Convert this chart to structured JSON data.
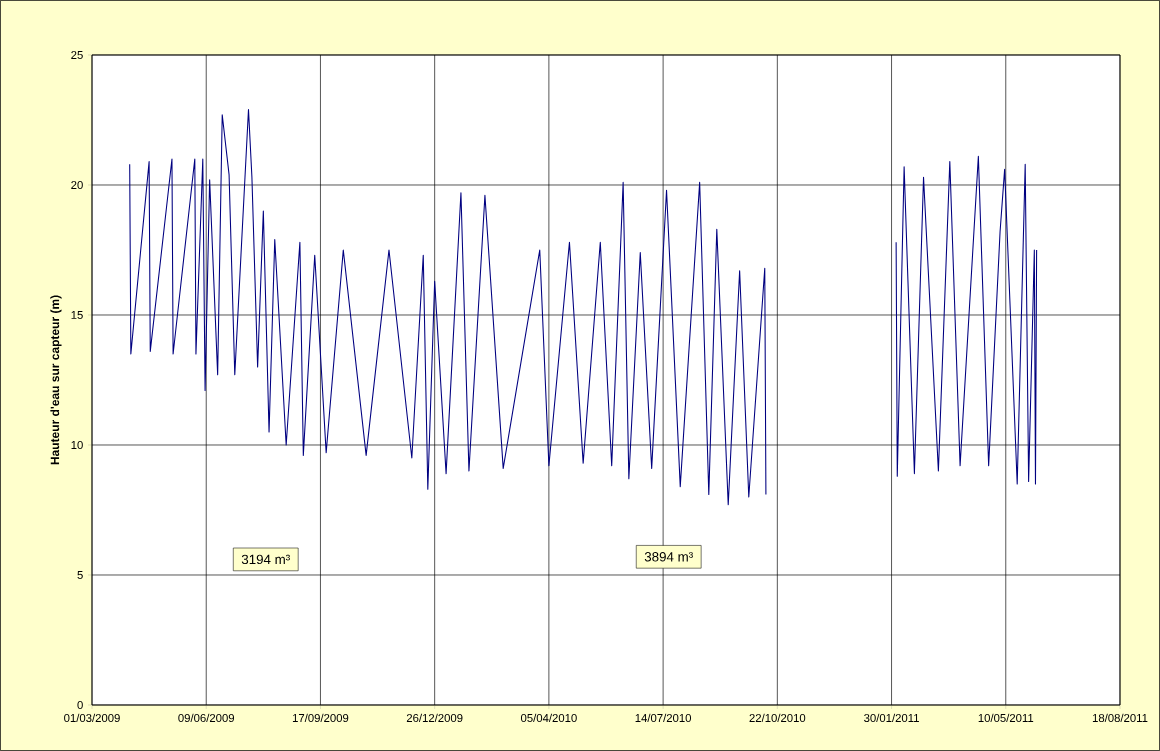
{
  "chart_data": {
    "type": "line",
    "ylabel": "Hauteur d'eau sur capteur (m)",
    "xlim": [
      "2009-03-01",
      "2011-08-18"
    ],
    "xticks": [
      {
        "value": "2009-03-01",
        "label": "01/03/2009"
      },
      {
        "value": "2009-06-09",
        "label": "09/06/2009"
      },
      {
        "value": "2009-09-17",
        "label": "17/09/2009"
      },
      {
        "value": "2009-12-26",
        "label": "26/12/2009"
      },
      {
        "value": "2010-04-05",
        "label": "05/04/2010"
      },
      {
        "value": "2010-07-14",
        "label": "14/07/2010"
      },
      {
        "value": "2010-10-22",
        "label": "22/10/2010"
      },
      {
        "value": "2011-01-30",
        "label": "30/01/2011"
      },
      {
        "value": "2011-05-10",
        "label": "10/05/2011"
      },
      {
        "value": "2011-08-18",
        "label": "18/08/2011"
      }
    ],
    "ylim": [
      0,
      25
    ],
    "yticks": [
      0,
      5,
      10,
      15,
      20,
      25
    ],
    "grid": true,
    "marker": "none",
    "line_style": "solid",
    "annotations": [
      "3194 m³",
      "3894 m³"
    ],
    "series": [
      {
        "color": "#000080",
        "x": [
          "2009-04-03",
          "2009-04-04",
          "2009-04-20",
          "2009-04-21",
          "2009-05-10",
          "2009-05-11",
          "2009-05-30",
          "2009-05-31",
          "2009-06-06",
          "2009-06-08",
          "2009-06-12",
          "2009-06-19",
          "2009-06-23",
          "2009-06-29",
          "2009-07-04",
          "2009-07-16",
          "2009-07-19",
          "2009-07-24",
          "2009-07-29",
          "2009-08-03",
          "2009-08-08",
          "2009-08-18",
          "2009-08-30",
          "2009-09-02",
          "2009-09-12",
          "2009-09-22",
          "2009-10-07",
          "2009-10-27",
          "2009-11-16",
          "2009-12-06",
          "2009-12-16",
          "2009-12-20",
          "2009-12-26",
          "2010-01-05",
          "2010-01-18",
          "2010-01-25",
          "2010-02-08",
          "2010-02-24",
          "2010-03-28",
          "2010-04-05",
          "2010-04-23",
          "2010-05-05",
          "2010-05-20",
          "2010-05-30",
          "2010-06-09",
          "2010-06-14",
          "2010-06-24",
          "2010-07-04",
          "2010-07-17",
          "2010-07-29",
          "2010-08-15",
          "2010-08-23",
          "2010-08-30",
          "2010-09-09",
          "2010-09-19",
          "2010-09-27",
          "2010-10-11",
          "2010-10-12",
          "2010-12-01",
          "2011-02-03",
          "2011-02-04",
          "2011-02-10",
          "2011-02-19",
          "2011-02-27",
          "2011-03-12",
          "2011-03-22",
          "2011-03-31",
          "2011-04-16",
          "2011-04-25",
          "2011-05-05",
          "2011-05-09",
          "2011-05-20",
          "2011-05-27",
          "2011-05-30",
          "2011-06-04",
          "2011-06-05",
          "2011-06-06"
        ],
        "values": [
          20.8,
          13.5,
          20.9,
          13.6,
          21.0,
          13.5,
          21.0,
          13.5,
          21.0,
          12.1,
          20.2,
          12.7,
          22.7,
          20.4,
          12.7,
          22.9,
          20.3,
          13.0,
          19.0,
          10.5,
          17.9,
          10.0,
          17.8,
          9.6,
          17.3,
          9.7,
          17.5,
          9.6,
          17.5,
          9.5,
          17.3,
          8.3,
          16.3,
          8.9,
          19.7,
          9.0,
          19.6,
          9.1,
          17.5,
          9.2,
          17.8,
          9.3,
          17.8,
          9.2,
          20.1,
          8.7,
          17.4,
          9.1,
          19.8,
          8.4,
          20.1,
          8.1,
          18.3,
          7.7,
          16.7,
          8.0,
          16.8,
          8.1,
          null,
          17.8,
          8.8,
          20.7,
          8.9,
          20.3,
          9.0,
          20.9,
          9.2,
          21.1,
          9.2,
          18.2,
          20.6,
          8.5,
          20.8,
          8.6,
          17.5,
          8.5,
          17.5
        ]
      }
    ]
  }
}
